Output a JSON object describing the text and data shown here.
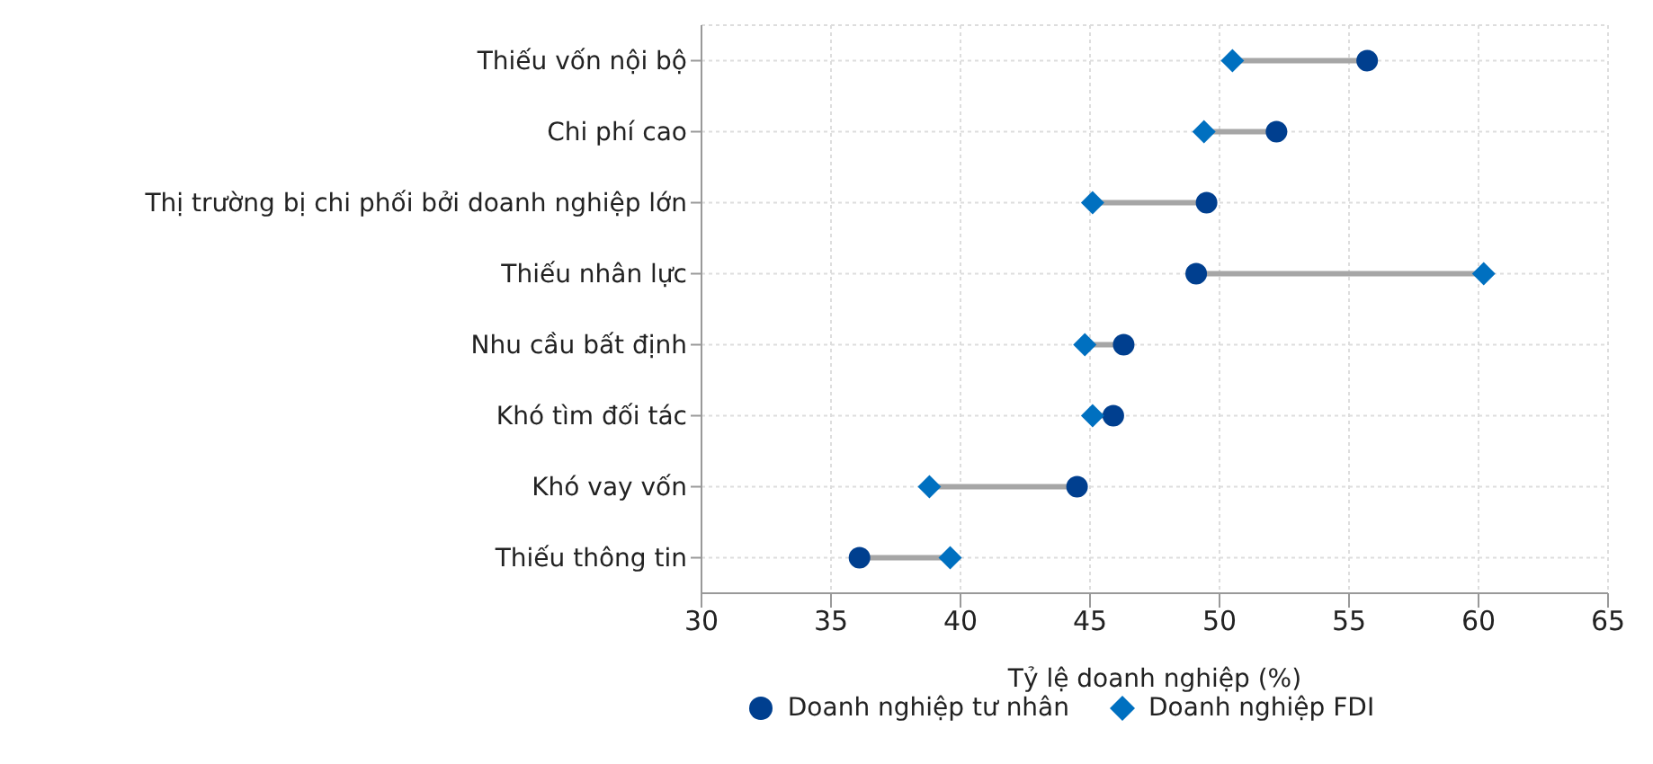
{
  "chart_data": {
    "type": "scatter",
    "orientation": "horizontal",
    "xlabel": "Tỷ lệ doanh nghiệp (%)",
    "categories": [
      "Thiếu vốn nội bộ",
      "Chi phí cao",
      "Thị trường bị chi phối bởi doanh nghiệp lớn",
      "Thiếu nhân lực",
      "Nhu cầu bất định",
      "Khó tìm đối tác",
      "Khó vay vốn",
      "Thiếu thông tin"
    ],
    "series": [
      {
        "name": "Doanh nghiệp tư nhân",
        "color": "#003f8f",
        "marker": "circle",
        "values": [
          55.7,
          52.2,
          49.5,
          49.1,
          46.3,
          45.9,
          44.5,
          36.1
        ]
      },
      {
        "name": "Doanh nghiệp FDI",
        "color": "#0070c0",
        "marker": "diamond",
        "values": [
          50.5,
          49.4,
          45.1,
          60.2,
          44.8,
          45.1,
          38.8,
          39.6
        ]
      }
    ],
    "xlim": [
      30,
      65
    ],
    "xticks": [
      30,
      35,
      40,
      45,
      50,
      55,
      60,
      65
    ],
    "grid": true,
    "legend": "bottom"
  }
}
